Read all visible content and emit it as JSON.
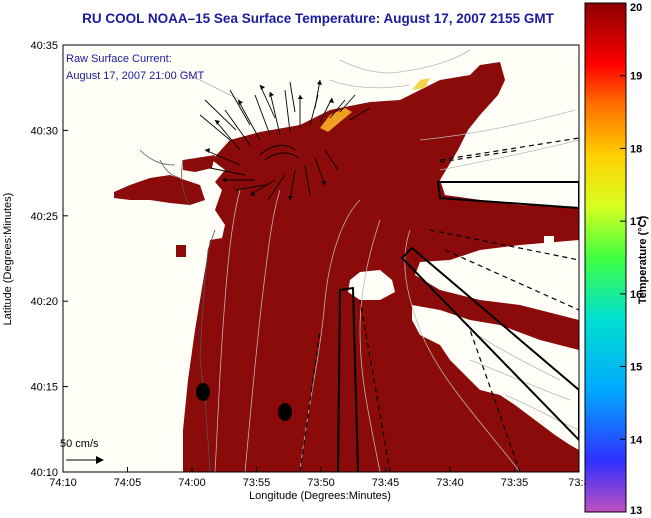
{
  "title": "RU COOL  NOAA–15  Sea Surface Temperature:  August 17, 2007 2155 GMT",
  "annotation": {
    "line1": "Raw Surface Current:",
    "line2": "August 17, 2007 21:00 GMT"
  },
  "scale_label": "50 cm/s",
  "x_axis": {
    "title": "Longitude (Degrees:Minutes)",
    "ticks": [
      "74:10",
      "74:05",
      "74:00",
      "73:55",
      "73:50",
      "73:45",
      "73:40",
      "73:35",
      "73:3"
    ]
  },
  "y_axis": {
    "title": "Latitude (Degrees:Minutes)",
    "ticks": [
      "40:35",
      "40:30",
      "40:25",
      "40:20",
      "40:15",
      "40:10"
    ]
  },
  "colorbar": {
    "title": "Temperature (°C)",
    "ticks": [
      "20",
      "19",
      "18",
      "17",
      "16",
      "15",
      "14",
      "13"
    ],
    "min": 13,
    "max": 20,
    "stops": [
      "#c04fc0",
      "#1a1aff",
      "#00aaff",
      "#00e0d0",
      "#40ff40",
      "#d8ff20",
      "#ffd000",
      "#ff7000",
      "#ff0000",
      "#8b0000"
    ]
  },
  "colors": {
    "sea": "#8b0a0a",
    "land": "#fffff8",
    "warm_edge": "#f0a020",
    "title": "#1a1aa0"
  }
}
